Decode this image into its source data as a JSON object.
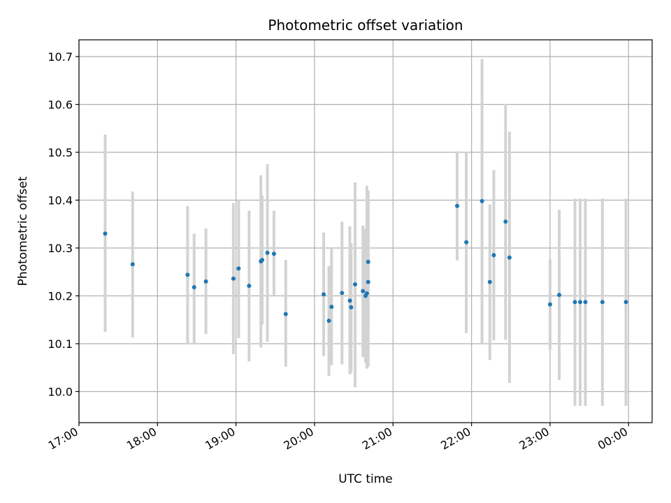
{
  "chart_data": {
    "type": "scatter",
    "title": "Photometric offset variation",
    "xlabel": "UTC time",
    "ylabel": "Photometric offset",
    "x_ticks": [
      "17:00",
      "18:00",
      "19:00",
      "20:00",
      "21:00",
      "22:00",
      "23:00",
      "00:00"
    ],
    "y_ticks": [
      "10.0",
      "10.1",
      "10.2",
      "10.3",
      "10.4",
      "10.5",
      "10.6",
      "10.7"
    ],
    "xlim": [
      "17:00",
      "00:18"
    ],
    "ylim": [
      9.935,
      10.735
    ],
    "grid": true,
    "colors": {
      "point": "#1f77b4",
      "errorbar": "#d3d3d3",
      "grid": "#b0b0b0"
    },
    "points": [
      {
        "x": "17:20",
        "y": 10.33,
        "err_low": 10.125,
        "err_high": 10.537
      },
      {
        "x": "17:41",
        "y": 10.266,
        "err_low": 10.113,
        "err_high": 10.418
      },
      {
        "x": "18:23",
        "y": 10.244,
        "err_low": 10.1,
        "err_high": 10.388
      },
      {
        "x": "18:28",
        "y": 10.218,
        "err_low": 10.1,
        "err_high": 10.33
      },
      {
        "x": "18:37",
        "y": 10.23,
        "err_low": 10.12,
        "err_high": 10.341
      },
      {
        "x": "18:58",
        "y": 10.236,
        "err_low": 10.078,
        "err_high": 10.394
      },
      {
        "x": "19:02",
        "y": 10.257,
        "err_low": 10.112,
        "err_high": 10.4
      },
      {
        "x": "19:10",
        "y": 10.221,
        "err_low": 10.063,
        "err_high": 10.378
      },
      {
        "x": "19:19",
        "y": 10.272,
        "err_low": 10.092,
        "err_high": 10.452
      },
      {
        "x": "19:20",
        "y": 10.275,
        "err_low": 10.14,
        "err_high": 10.41
      },
      {
        "x": "19:24",
        "y": 10.29,
        "err_low": 10.104,
        "err_high": 10.475
      },
      {
        "x": "19:29",
        "y": 10.288,
        "err_low": 10.2,
        "err_high": 10.378
      },
      {
        "x": "19:38",
        "y": 10.162,
        "err_low": 10.052,
        "err_high": 10.275
      },
      {
        "x": "20:07",
        "y": 10.203,
        "err_low": 10.074,
        "err_high": 10.332
      },
      {
        "x": "20:11",
        "y": 10.148,
        "err_low": 10.033,
        "err_high": 10.262
      },
      {
        "x": "20:13",
        "y": 10.177,
        "err_low": 10.055,
        "err_high": 10.3
      },
      {
        "x": "20:21",
        "y": 10.206,
        "err_low": 10.057,
        "err_high": 10.355
      },
      {
        "x": "20:27",
        "y": 10.19,
        "err_low": 10.036,
        "err_high": 10.345
      },
      {
        "x": "20:28",
        "y": 10.176,
        "err_low": 10.04,
        "err_high": 10.31
      },
      {
        "x": "20:31",
        "y": 10.224,
        "err_low": 10.009,
        "err_high": 10.437
      },
      {
        "x": "20:37",
        "y": 10.21,
        "err_low": 10.072,
        "err_high": 10.347
      },
      {
        "x": "20:39",
        "y": 10.2,
        "err_low": 10.06,
        "err_high": 10.34
      },
      {
        "x": "20:40",
        "y": 10.205,
        "err_low": 10.048,
        "err_high": 10.43
      },
      {
        "x": "20:41",
        "y": 10.229,
        "err_low": 10.052,
        "err_high": 10.41
      },
      {
        "x": "20:41",
        "y": 10.271,
        "err_low": 10.13,
        "err_high": 10.42
      },
      {
        "x": "21:49",
        "y": 10.388,
        "err_low": 10.274,
        "err_high": 10.502
      },
      {
        "x": "21:56",
        "y": 10.312,
        "err_low": 10.122,
        "err_high": 10.5
      },
      {
        "x": "22:08",
        "y": 10.398,
        "err_low": 10.1,
        "err_high": 10.695
      },
      {
        "x": "22:14",
        "y": 10.229,
        "err_low": 10.066,
        "err_high": 10.391
      },
      {
        "x": "22:17",
        "y": 10.285,
        "err_low": 10.107,
        "err_high": 10.463
      },
      {
        "x": "22:26",
        "y": 10.355,
        "err_low": 10.108,
        "err_high": 10.601
      },
      {
        "x": "22:29",
        "y": 10.28,
        "err_low": 10.018,
        "err_high": 10.543
      },
      {
        "x": "23:00",
        "y": 10.182,
        "err_low": 10.088,
        "err_high": 10.276
      },
      {
        "x": "23:07",
        "y": 10.202,
        "err_low": 10.024,
        "err_high": 10.38
      },
      {
        "x": "23:19",
        "y": 10.187,
        "err_low": 9.97,
        "err_high": 10.403
      },
      {
        "x": "23:23",
        "y": 10.187,
        "err_low": 9.97,
        "err_high": 10.403
      },
      {
        "x": "23:27",
        "y": 10.187,
        "err_low": 9.97,
        "err_high": 10.403
      },
      {
        "x": "23:40",
        "y": 10.187,
        "err_low": 9.97,
        "err_high": 10.403
      },
      {
        "x": "23:58",
        "y": 10.187,
        "err_low": 9.97,
        "err_high": 10.403
      }
    ]
  }
}
